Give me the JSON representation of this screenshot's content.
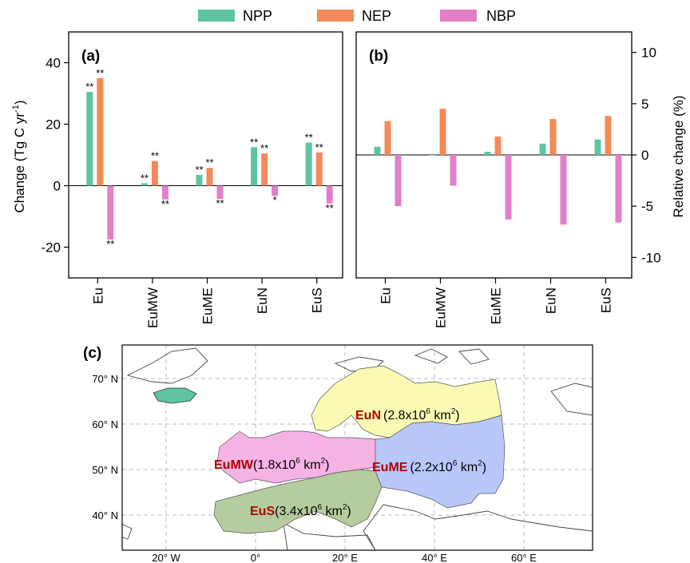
{
  "colors": {
    "NPP": "#5ec4a1",
    "NEP": "#f4895a",
    "NBP": "#e27fc9",
    "EuN": "#fafab4",
    "EuMW": "#f6b3e6",
    "EuME": "#b8c8fa",
    "EuS": "#b5cc9e",
    "label_red": "#b00000"
  },
  "legend": [
    "NPP",
    "NEP",
    "NBP"
  ],
  "chart_data": [
    {
      "panel": "(a)",
      "type": "bar",
      "categories": [
        "Eu",
        "EuMW",
        "EuME",
        "EuN",
        "EuS"
      ],
      "ylabel_main": "Change (Tg C yr",
      "ylabel_sup": "-1",
      "ylabel_tail": ")",
      "ylim": [
        -30,
        50
      ],
      "yticks": [
        "40",
        "20",
        "0",
        "-20"
      ],
      "series": [
        {
          "name": "NPP",
          "values": [
            30.5,
            0.8,
            3.5,
            12.5,
            14
          ],
          "sig": [
            "**",
            "**",
            "**",
            "**",
            "**"
          ]
        },
        {
          "name": "NEP",
          "values": [
            35,
            8,
            5.8,
            10.5,
            10.8
          ],
          "sig": [
            "**",
            "**",
            "**",
            "**",
            "**"
          ]
        },
        {
          "name": "NBP",
          "values": [
            -17.5,
            -4.5,
            -4.3,
            -3.3,
            -5.8
          ],
          "sig": [
            "**",
            "**",
            "**",
            "*",
            "**"
          ]
        }
      ]
    },
    {
      "panel": "(b)",
      "type": "bar",
      "categories": [
        "Eu",
        "EuMW",
        "EuME",
        "EuN",
        "EuS"
      ],
      "ylabel": "Relative change (%)",
      "ylim": [
        -12,
        12
      ],
      "yticks": [
        "10",
        "5",
        "0",
        "-5",
        "-10"
      ],
      "series": [
        {
          "name": "NPP",
          "values": [
            0.8,
            0,
            0.3,
            1.1,
            1.5
          ]
        },
        {
          "name": "NEP",
          "values": [
            3.3,
            4.5,
            1.8,
            3.5,
            3.8
          ]
        },
        {
          "name": "NBP",
          "values": [
            -5,
            -3,
            -6.3,
            -6.8,
            -6.6
          ]
        }
      ]
    }
  ],
  "map": {
    "panel": "(c)",
    "lat_labels": [
      "70° N",
      "60° N",
      "50° N",
      "40° N"
    ],
    "lon_labels": [
      "20° W",
      "0°",
      "20° E",
      "40° E",
      "60° E"
    ],
    "regions": [
      {
        "code": "EuN",
        "area_pre": "(2.8x10",
        "sup": "6",
        "area_post": " km",
        "sup2": "2",
        "close": ")"
      },
      {
        "code": "EuMW",
        "area_pre": "(1.8x10",
        "sup": "6",
        "area_post": " km",
        "sup2": "2",
        "close": ")"
      },
      {
        "code": "EuME",
        "area_pre": "(2.2x10",
        "sup": "6",
        "area_post": " km",
        "sup2": "2",
        "close": ")"
      },
      {
        "code": "EuS",
        "area_pre": "(3.4x10",
        "sup": "6",
        "area_post": " km",
        "sup2": "2",
        "close": ")"
      }
    ]
  }
}
